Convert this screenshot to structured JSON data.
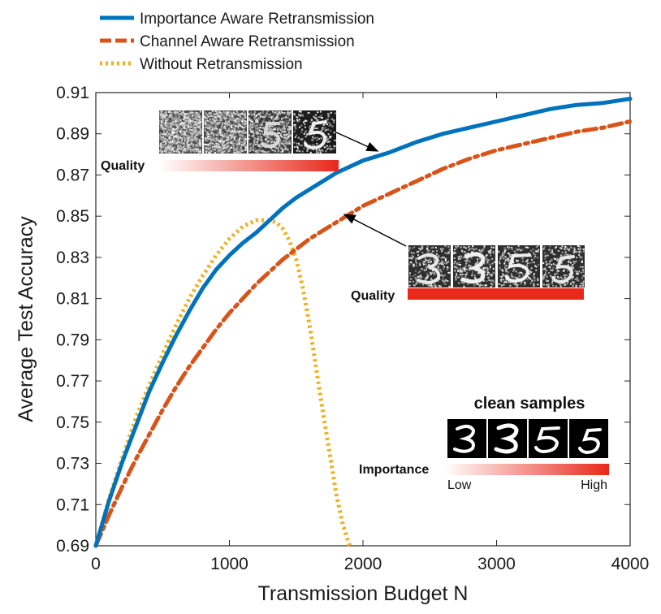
{
  "chart_data": {
    "type": "line",
    "xlabel": "Transmission Budget N",
    "ylabel": "Average Test Accuracy",
    "xlim": [
      0,
      4000
    ],
    "ylim": [
      0.69,
      0.91
    ],
    "x_ticks": [
      "0",
      "1000",
      "2000",
      "3000",
      "4000"
    ],
    "y_ticks": [
      "0.69",
      "0.71",
      "0.73",
      "0.75",
      "0.77",
      "0.79",
      "0.81",
      "0.83",
      "0.85",
      "0.87",
      "0.89",
      "0.91"
    ],
    "grid": false,
    "legend_position": "top-left, above plot",
    "series": [
      {
        "name": "Importance Aware Retransmission",
        "color": "#0072BD",
        "style": "solid",
        "x": [
          0,
          100,
          200,
          300,
          400,
          500,
          600,
          700,
          800,
          900,
          1000,
          1100,
          1200,
          1300,
          1400,
          1500,
          1600,
          1700,
          1800,
          1900,
          2000,
          2200,
          2400,
          2600,
          2800,
          3000,
          3200,
          3400,
          3600,
          3800,
          4000
        ],
        "y": [
          0.69,
          0.712,
          0.731,
          0.748,
          0.765,
          0.779,
          0.792,
          0.804,
          0.815,
          0.824,
          0.831,
          0.837,
          0.842,
          0.848,
          0.854,
          0.859,
          0.863,
          0.867,
          0.871,
          0.874,
          0.877,
          0.881,
          0.886,
          0.89,
          0.893,
          0.896,
          0.899,
          0.902,
          0.904,
          0.905,
          0.907
        ]
      },
      {
        "name": "Channel Aware Retransmission",
        "color": "#D95319",
        "style": "dash-dot",
        "x": [
          0,
          100,
          200,
          300,
          400,
          500,
          600,
          700,
          800,
          900,
          1000,
          1100,
          1200,
          1300,
          1400,
          1500,
          1600,
          1700,
          1800,
          1900,
          2000,
          2200,
          2400,
          2600,
          2800,
          3000,
          3200,
          3400,
          3600,
          3800,
          4000
        ],
        "y": [
          0.69,
          0.705,
          0.719,
          0.732,
          0.744,
          0.756,
          0.767,
          0.777,
          0.786,
          0.795,
          0.803,
          0.81,
          0.817,
          0.823,
          0.829,
          0.834,
          0.839,
          0.843,
          0.847,
          0.851,
          0.855,
          0.861,
          0.867,
          0.873,
          0.878,
          0.882,
          0.885,
          0.888,
          0.891,
          0.893,
          0.896
        ]
      },
      {
        "name": "Without Retransmission",
        "color": "#EDB120",
        "style": "dotted",
        "x": [
          0,
          100,
          200,
          300,
          400,
          500,
          600,
          700,
          800,
          900,
          1000,
          1100,
          1200,
          1300,
          1350,
          1400,
          1450,
          1500,
          1550,
          1600,
          1650,
          1700,
          1750,
          1800,
          1850,
          1900
        ],
        "y": [
          0.69,
          0.713,
          0.733,
          0.752,
          0.768,
          0.783,
          0.797,
          0.81,
          0.821,
          0.831,
          0.839,
          0.845,
          0.848,
          0.848,
          0.847,
          0.844,
          0.838,
          0.829,
          0.815,
          0.797,
          0.776,
          0.755,
          0.735,
          0.715,
          0.7,
          0.69
        ]
      }
    ],
    "annotations": [
      {
        "label": "Quality",
        "gradient": "white-to-red"
      },
      {
        "label": "Quality",
        "gradient": "solid-red"
      },
      {
        "title": "clean samples",
        "label": "Importance",
        "low": "Low",
        "high": "High",
        "gradient": "white-to-red"
      }
    ]
  },
  "colors": {
    "importance_blue": "#0072BD",
    "channel_orange": "#D95319",
    "without_yellow": "#EDB120",
    "bar_red": "#E8281A"
  }
}
